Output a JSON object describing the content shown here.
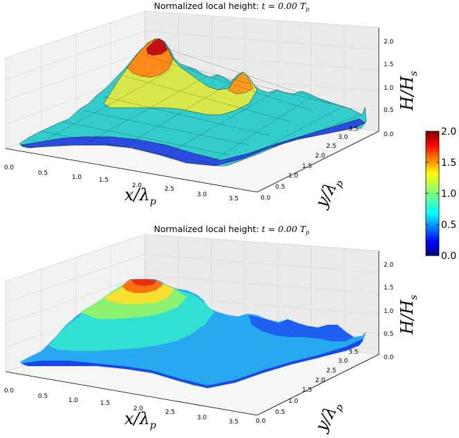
{
  "chart_data": [
    {
      "type": "surface",
      "title_text": "Normalized local height: ",
      "title_math": "t =   0.00 T",
      "title_sub": "p",
      "xlabel": "x/λ",
      "xlabel_sub": "p",
      "ylabel": "y/λ",
      "ylabel_sub": "p",
      "zlabel": "H/H",
      "zlabel_sub": "s",
      "xlim": [
        0,
        3.5
      ],
      "ylim": [
        0,
        3.5
      ],
      "zlim": [
        0,
        2
      ],
      "xticks": [
        "0.0",
        "0.5",
        "1.0",
        "1.5",
        "2.0",
        "2.5",
        "3.0",
        "3.5"
      ],
      "yticks": [
        "0.0",
        "0.5",
        "1.0",
        "1.5",
        "2.0",
        "2.5",
        "3.0",
        "3.5"
      ],
      "zticks": [
        "0.0",
        "0.5",
        "1.0",
        "1.5",
        "2.0"
      ],
      "style": "wireframe-shaded",
      "peak": {
        "x": 1.9,
        "y": 1.8,
        "z": 2.0
      }
    },
    {
      "type": "surface",
      "title_text": "Normalized local height: ",
      "title_math": "t =   0.00 T",
      "title_sub": "p",
      "xlabel": "x/λ",
      "xlabel_sub": "p",
      "ylabel": "y/λ",
      "ylabel_sub": "p",
      "zlabel": "H/H",
      "zlabel_sub": "s",
      "xlim": [
        0,
        3.5
      ],
      "ylim": [
        0,
        3.5
      ],
      "zlim": [
        0,
        2
      ],
      "xticks": [
        "0.0",
        "0.5",
        "1.0",
        "1.5",
        "2.0",
        "2.5",
        "3.0",
        "3.5"
      ],
      "yticks": [
        "0.0",
        "0.5",
        "1.0",
        "1.5",
        "2.0",
        "2.5",
        "3.0",
        "3.5"
      ],
      "zticks": [
        "0.0",
        "0.5",
        "1.0",
        "1.5",
        "2.0"
      ],
      "style": "smooth-shaded",
      "peak": {
        "x": 1.9,
        "y": 1.8,
        "z": 1.6
      }
    }
  ],
  "colorbar": {
    "colormap": "jet",
    "range": [
      0,
      2
    ],
    "ticks": [
      "2.0",
      "1.5",
      "1.0",
      "0.5",
      "0.0"
    ],
    "colors": [
      "#00007f",
      "#0000ff",
      "#007fff",
      "#00ffff",
      "#7fff7f",
      "#ffff00",
      "#ff7f00",
      "#ff0000",
      "#7f0000"
    ]
  }
}
